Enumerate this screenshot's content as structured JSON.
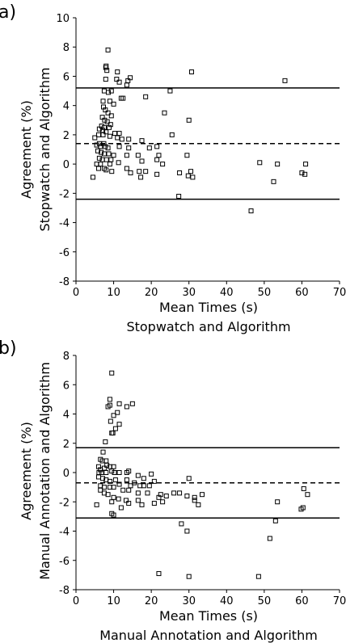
{
  "chart_data": [
    {
      "type": "scatter",
      "panel_label": "a)",
      "xlabel": "Mean Times (s)",
      "xlabel2": "Stopwatch and Algorithm",
      "ylabel": "Agreement (%)",
      "ylabel2": "Stopwatch and Algorithm",
      "xlim": [
        0,
        70
      ],
      "ylim": [
        -8,
        10
      ],
      "x_ticks": [
        0,
        10,
        20,
        30,
        40,
        50,
        60,
        70
      ],
      "y_ticks": [
        -8,
        -6,
        -4,
        -2,
        0,
        2,
        4,
        6,
        8,
        10
      ],
      "grid": false,
      "reference_lines": [
        {
          "y": 5.2,
          "style": "solid"
        },
        {
          "y": 1.4,
          "style": "dashed"
        },
        {
          "y": -2.4,
          "style": "solid"
        }
      ],
      "points": [
        [
          8.5,
          7.8
        ],
        [
          8,
          6.7
        ],
        [
          7.9,
          6.6
        ],
        [
          8.2,
          6.4
        ],
        [
          11,
          6.3
        ],
        [
          30.7,
          6.3
        ],
        [
          14.4,
          5.9
        ],
        [
          7.9,
          5.8
        ],
        [
          10.8,
          5.8
        ],
        [
          11.5,
          5.6
        ],
        [
          13.5,
          5.4
        ],
        [
          13.8,
          5.7
        ],
        [
          55.5,
          5.7
        ],
        [
          25,
          5
        ],
        [
          7.5,
          5.0
        ],
        [
          8.6,
          4.9
        ],
        [
          9.4,
          5.0
        ],
        [
          12,
          4.5
        ],
        [
          12.5,
          4.5
        ],
        [
          18.5,
          4.6
        ],
        [
          7.2,
          4.3
        ],
        [
          9,
          4.3
        ],
        [
          10,
          4.1
        ],
        [
          7.3,
          3.9
        ],
        [
          7.8,
          3.7
        ],
        [
          23.5,
          3.5
        ],
        [
          8.5,
          3.5
        ],
        [
          9.4,
          3.3
        ],
        [
          7,
          3.2
        ],
        [
          30,
          3
        ],
        [
          7.6,
          3
        ],
        [
          8.3,
          2.9
        ],
        [
          9.2,
          2.7
        ],
        [
          6.8,
          2.6
        ],
        [
          7.5,
          2.5
        ],
        [
          8.8,
          2.5
        ],
        [
          6.2,
          2.4
        ],
        [
          7.1,
          2.3
        ],
        [
          8,
          2.2
        ],
        [
          11.5,
          2.1
        ],
        [
          10.3,
          2.1
        ],
        [
          6,
          2
        ],
        [
          7.2,
          2
        ],
        [
          9,
          1.9
        ],
        [
          5,
          1.8
        ],
        [
          11,
          1.8
        ],
        [
          12.2,
          1.7
        ],
        [
          17.5,
          1.6
        ],
        [
          14,
          1.7
        ],
        [
          25.5,
          2
        ],
        [
          6.2,
          1.4
        ],
        [
          7.4,
          1.4
        ],
        [
          5.5,
          1.3
        ],
        [
          6.5,
          1.2
        ],
        [
          7.8,
          1.2
        ],
        [
          8.5,
          1.1
        ],
        [
          11.5,
          1.2
        ],
        [
          14,
          1.1
        ],
        [
          19.5,
          1.1
        ],
        [
          21.5,
          1.2
        ],
        [
          5.8,
          0.9
        ],
        [
          6.7,
          0.8
        ],
        [
          7.5,
          0.7
        ],
        [
          8.7,
          0.7
        ],
        [
          10,
          0.6
        ],
        [
          13.5,
          0.6
        ],
        [
          16.5,
          0.6
        ],
        [
          22,
          0.6
        ],
        [
          29.5,
          0.6
        ],
        [
          6.2,
          0.4
        ],
        [
          7,
          0.3
        ],
        [
          8.1,
          0.3
        ],
        [
          9.3,
          0.3
        ],
        [
          17.5,
          0.2
        ],
        [
          21.5,
          0.3
        ],
        [
          48.8,
          0.1
        ],
        [
          53.5,
          0
        ],
        [
          61,
          0
        ],
        [
          5.5,
          0
        ],
        [
          6.5,
          0
        ],
        [
          9,
          0
        ],
        [
          11.3,
          0.1
        ],
        [
          23,
          0
        ],
        [
          6,
          -0.3
        ],
        [
          8,
          -0.4
        ],
        [
          13.5,
          -0.3
        ],
        [
          16.8,
          -0.5
        ],
        [
          14.5,
          -0.6
        ],
        [
          18.5,
          -0.5
        ],
        [
          30.5,
          -0.5
        ],
        [
          7.5,
          -0.3
        ],
        [
          9.5,
          -0.5
        ],
        [
          27.5,
          -0.6
        ],
        [
          4.5,
          -0.9
        ],
        [
          21.5,
          -0.7
        ],
        [
          17.2,
          -0.9
        ],
        [
          31,
          -0.9
        ],
        [
          29.8,
          -0.8
        ],
        [
          60,
          -0.6
        ],
        [
          60.8,
          -0.7
        ],
        [
          52.5,
          -1.2
        ],
        [
          27.3,
          -2.2
        ],
        [
          46.5,
          -3.2
        ]
      ]
    },
    {
      "type": "scatter",
      "panel_label": "b)",
      "xlabel": "Mean Times (s)",
      "xlabel2": "Manual Annotation and Algorithm",
      "ylabel": "Agreement (%)",
      "ylabel2": "Manual Annotation and Algorithm",
      "xlim": [
        0,
        70
      ],
      "ylim": [
        -8,
        8
      ],
      "x_ticks": [
        0,
        10,
        20,
        30,
        40,
        50,
        60,
        70
      ],
      "y_ticks": [
        -8,
        -6,
        -4,
        -2,
        0,
        2,
        4,
        6,
        8
      ],
      "grid": false,
      "reference_lines": [
        {
          "y": 1.7,
          "style": "solid"
        },
        {
          "y": -0.7,
          "style": "dashed"
        },
        {
          "y": -3.1,
          "style": "solid"
        }
      ],
      "points": [
        [
          9.5,
          6.8
        ],
        [
          9,
          5
        ],
        [
          11.5,
          4.7
        ],
        [
          15,
          4.7
        ],
        [
          9,
          4.6
        ],
        [
          8.5,
          4.5
        ],
        [
          13.5,
          4.5
        ],
        [
          11,
          4.1
        ],
        [
          10,
          3.9
        ],
        [
          9.2,
          3.5
        ],
        [
          11.5,
          3.3
        ],
        [
          10.5,
          3
        ],
        [
          9.5,
          2.7
        ],
        [
          9.8,
          2.7
        ],
        [
          7.8,
          2.1
        ],
        [
          7.2,
          1.4
        ],
        [
          6.5,
          0.9
        ],
        [
          7,
          0.8
        ],
        [
          8,
          0.8
        ],
        [
          6,
          0.4
        ],
        [
          6.5,
          0.2
        ],
        [
          7.5,
          0.3
        ],
        [
          8.2,
          0.5
        ],
        [
          9,
          0.4
        ],
        [
          10,
          0.4
        ],
        [
          6.1,
          0
        ],
        [
          6.8,
          0
        ],
        [
          8,
          0
        ],
        [
          9.5,
          0.1
        ],
        [
          10.2,
          0
        ],
        [
          11.5,
          0
        ],
        [
          13.5,
          0
        ],
        [
          14,
          0.1
        ],
        [
          16.5,
          -0.2
        ],
        [
          18,
          -0.4
        ],
        [
          20,
          -0.1
        ],
        [
          6,
          -0.3
        ],
        [
          7.1,
          -0.4
        ],
        [
          8,
          -0.5
        ],
        [
          9,
          -0.6
        ],
        [
          10.5,
          -0.5
        ],
        [
          11.5,
          -0.8
        ],
        [
          13.5,
          -0.5
        ],
        [
          14.5,
          -0.9
        ],
        [
          15.5,
          -0.7
        ],
        [
          17,
          -0.9
        ],
        [
          18,
          -0.9
        ],
        [
          19.5,
          -0.9
        ],
        [
          20.8,
          -0.6
        ],
        [
          6.5,
          -0.9
        ],
        [
          7.5,
          -1
        ],
        [
          9,
          -1
        ],
        [
          10,
          -1
        ],
        [
          12.5,
          -1.2
        ],
        [
          14,
          -1.2
        ],
        [
          16.5,
          -1.4
        ],
        [
          19,
          -1.4
        ],
        [
          22.5,
          -1.5
        ],
        [
          24,
          -1.6
        ],
        [
          27.5,
          -1.4
        ],
        [
          29.5,
          -1.6
        ],
        [
          30,
          -0.4
        ],
        [
          6.5,
          -1.2
        ],
        [
          7.5,
          -1.4
        ],
        [
          8.5,
          -1.5
        ],
        [
          10,
          -1.7
        ],
        [
          11.3,
          -1.8
        ],
        [
          13.3,
          -1.9
        ],
        [
          16.5,
          -1.9
        ],
        [
          22,
          -1.7
        ],
        [
          26,
          -1.4
        ],
        [
          31.5,
          -1.7
        ],
        [
          33.5,
          -1.5
        ],
        [
          31.5,
          -1.9
        ],
        [
          5.5,
          -2.2
        ],
        [
          9.5,
          -2
        ],
        [
          12,
          -2.4
        ],
        [
          14,
          -2.1
        ],
        [
          17.5,
          -2.2
        ],
        [
          20.8,
          -2.1
        ],
        [
          23,
          -2
        ],
        [
          32.5,
          -2.2
        ],
        [
          53.5,
          -2
        ],
        [
          60.5,
          -1.1
        ],
        [
          61.5,
          -1.5
        ],
        [
          59.8,
          -2.5
        ],
        [
          60.3,
          -2.4
        ],
        [
          9.5,
          -2.8
        ],
        [
          10,
          -2.9
        ],
        [
          28,
          -3.5
        ],
        [
          29.5,
          -4
        ],
        [
          53,
          -3.3
        ],
        [
          51.5,
          -4.5
        ],
        [
          22,
          -6.9
        ],
        [
          30,
          -7.1
        ],
        [
          48.5,
          -7.1
        ]
      ]
    }
  ]
}
